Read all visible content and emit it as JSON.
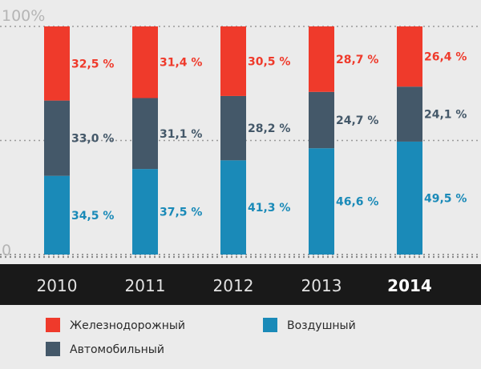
{
  "chart_data": {
    "type": "bar",
    "stacked": true,
    "title": "",
    "xlabel": "",
    "ylabel": "",
    "ylim": [
      0,
      100
    ],
    "y_ticks": [
      {
        "value": 100,
        "label": "100%"
      },
      {
        "value": 0,
        "label": "0"
      }
    ],
    "grid": true,
    "legend_position": "bottom",
    "categories": [
      "2010",
      "2011",
      "2012",
      "2013",
      "2014"
    ],
    "highlight_category": "2014",
    "series": [
      {
        "name": "Воздушный",
        "color": "#1a8ab8",
        "values": [
          34.5,
          37.5,
          41.3,
          46.6,
          49.5
        ],
        "labels": [
          "34,5 %",
          "37,5 %",
          "41,3 %",
          "46,6 %",
          "49,5 %"
        ]
      },
      {
        "name": "Автомобильный",
        "color": "#445869",
        "values": [
          33.0,
          31.1,
          28.2,
          24.7,
          24.1
        ],
        "labels": [
          "33,0 %",
          "31,1 %",
          "28,2 %",
          "24,7 %",
          "24,1 %"
        ]
      },
      {
        "name": "Железнодорожный",
        "color": "#ef3a2b",
        "values": [
          32.5,
          31.4,
          30.5,
          28.7,
          26.4
        ],
        "labels": [
          "32,5 %",
          "31,4 %",
          "30,5 %",
          "28,7 %",
          "26,4 %"
        ]
      }
    ],
    "legend_order": [
      "Железнодорожный",
      "Воздушный",
      "Автомобильный"
    ],
    "colors": {
      "plot_background": "#ebebeb",
      "axis_band": "#191919",
      "legend_background": "#ebebeb"
    }
  }
}
